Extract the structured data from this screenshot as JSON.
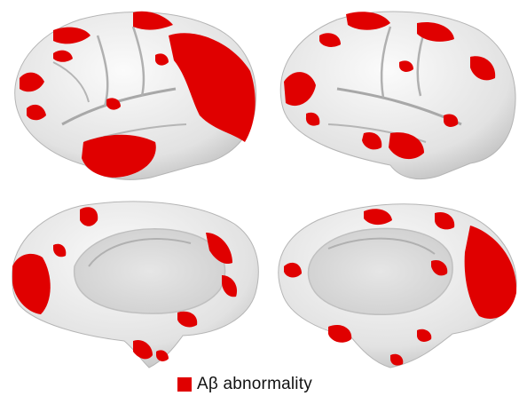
{
  "legend": {
    "label": "Aβ abnormality",
    "color": "#e00000"
  },
  "colors": {
    "cortex": "#ededed",
    "cortex_shadow": "#bdbdbd",
    "sulcus": "#a8a8a8",
    "abnormality": "#e00000"
  },
  "panels": [
    {
      "view": "left-lateral"
    },
    {
      "view": "right-lateral"
    },
    {
      "view": "left-medial"
    },
    {
      "view": "right-medial"
    }
  ]
}
